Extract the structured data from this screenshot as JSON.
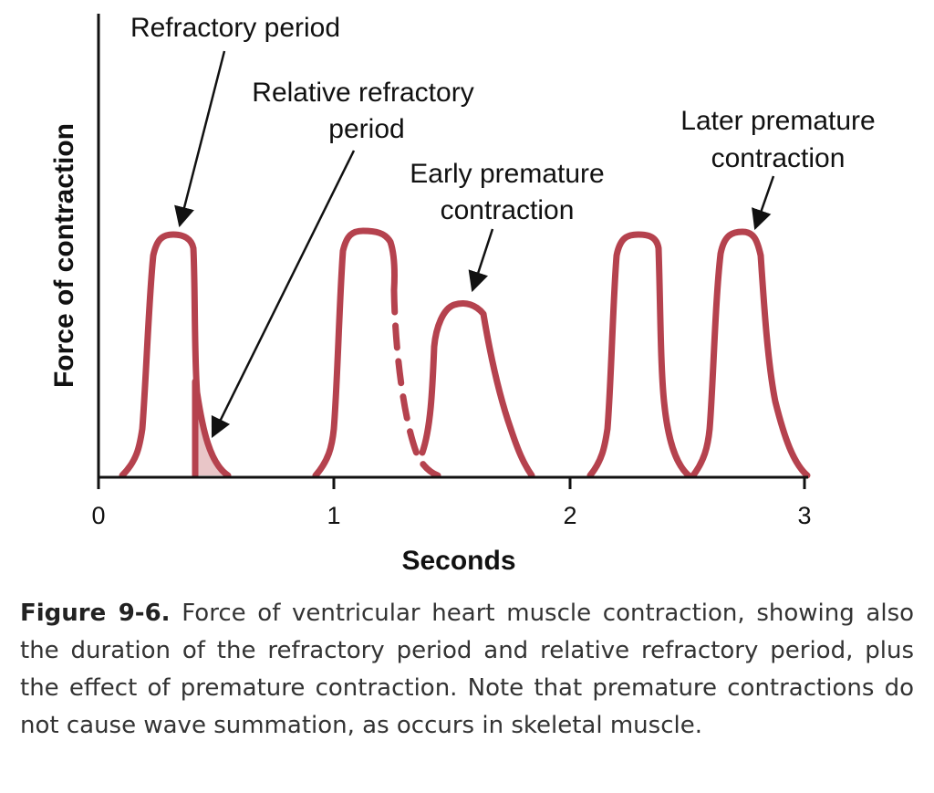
{
  "diagram": {
    "y_axis_title": "Force of contraction",
    "x_axis_title": "Seconds",
    "x_ticks": [
      "0",
      "1",
      "2",
      "3"
    ],
    "labels": {
      "refractory_period": "Refractory period",
      "relative_refractory_line1": "Relative refractory",
      "relative_refractory_line2": "period",
      "early_premature_line1": "Early premature",
      "early_premature_line2": "contraction",
      "later_premature_line1": "Later premature",
      "later_premature_line2": "contraction"
    },
    "colors": {
      "curve": "#b5424e",
      "shade": "#e9c6c8",
      "axis": "#111111"
    }
  },
  "caption": {
    "figure_number": "Figure 9-6.",
    "text": "Force of ventricular heart muscle contraction, showing also the duration of the refractory period and relative refractory period, plus the effect of premature contraction. Note that premature contractions do not cause wave summation, as occurs in skeletal muscle."
  }
}
